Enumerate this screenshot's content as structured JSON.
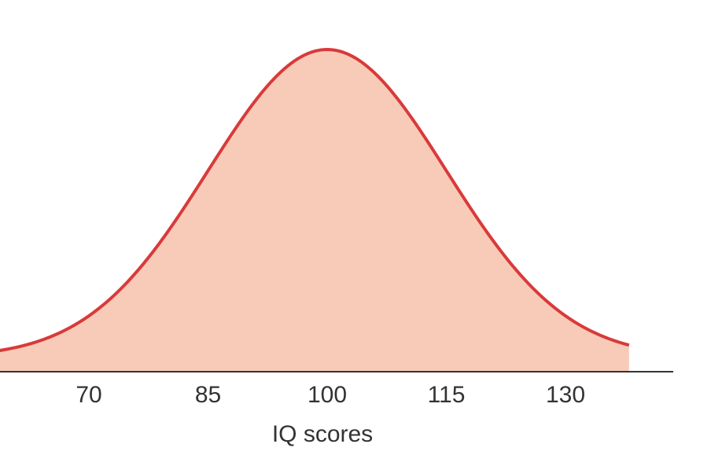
{
  "chart_data": {
    "type": "area",
    "title": "",
    "xlabel": "IQ scores",
    "ylabel": "",
    "distribution": {
      "kind": "normal",
      "mean": 100,
      "sd": 15
    },
    "xlim": [
      57,
      138
    ],
    "xticks": [
      {
        "value": 70,
        "label": "70"
      },
      {
        "value": 85,
        "label": "85"
      },
      {
        "value": 100,
        "label": "100"
      },
      {
        "value": 115,
        "label": "115"
      },
      {
        "value": 130,
        "label": "130"
      }
    ],
    "grid": false,
    "legend": "none",
    "colors": {
      "fill": "#f8cbb8",
      "line": "#d93a3a",
      "axis": "#333333"
    }
  }
}
